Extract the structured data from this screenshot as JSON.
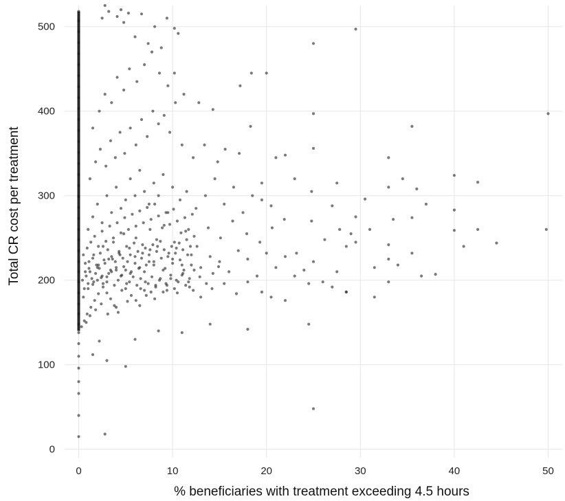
{
  "chart_data": {
    "type": "scatter",
    "title": "",
    "xlabel": "% beneficiaries with treatment exceeding 4.5 hours",
    "ylabel": "Total CR cost per treatment",
    "xlim": [
      -1.5,
      51.5
    ],
    "ylim": [
      -10,
      525
    ],
    "xticks": [
      0,
      10,
      20,
      30,
      40,
      50
    ],
    "yticks": [
      0,
      100,
      200,
      300,
      400,
      500
    ],
    "grid": true,
    "legend": "none",
    "point_color": "#333333",
    "point_opacity": 0.65,
    "points": [
      [
        0,
        15
      ],
      [
        0,
        40
      ],
      [
        0,
        66
      ],
      [
        0,
        80
      ],
      [
        0,
        96
      ],
      [
        0,
        110
      ],
      [
        0,
        125
      ],
      [
        0,
        138
      ],
      [
        0,
        148
      ],
      [
        0,
        160
      ],
      [
        0,
        172
      ],
      [
        0,
        185
      ],
      [
        0,
        198
      ],
      [
        0,
        210
      ],
      [
        0,
        222
      ],
      [
        0,
        235
      ],
      [
        0,
        248
      ],
      [
        0,
        260
      ],
      [
        0,
        273
      ],
      [
        0,
        286
      ],
      [
        0,
        299
      ],
      [
        0,
        312
      ],
      [
        0,
        325
      ],
      [
        0,
        338
      ],
      [
        0,
        351
      ],
      [
        0,
        364
      ],
      [
        0,
        377
      ],
      [
        0,
        390
      ],
      [
        0,
        403
      ],
      [
        0,
        416
      ],
      [
        0,
        429
      ],
      [
        0,
        442
      ],
      [
        0,
        455
      ],
      [
        0,
        468
      ],
      [
        0,
        481
      ],
      [
        0,
        494
      ],
      [
        0,
        507
      ],
      [
        0,
        518
      ],
      [
        2.8,
        18
      ],
      [
        5,
        98
      ],
      [
        25,
        48
      ],
      [
        24.5,
        148
      ],
      [
        3,
        105
      ],
      [
        1.5,
        112
      ],
      [
        2.2,
        128
      ],
      [
        6,
        130
      ],
      [
        8.5,
        140
      ],
      [
        11,
        138
      ],
      [
        14,
        148
      ],
      [
        18,
        142
      ],
      [
        0.8,
        150
      ],
      [
        1.2,
        158
      ],
      [
        1.8,
        165
      ],
      [
        2.4,
        172
      ],
      [
        3.1,
        160
      ],
      [
        4.0,
        168
      ],
      [
        5.2,
        175
      ],
      [
        6.5,
        170
      ],
      [
        7.2,
        182
      ],
      [
        8.1,
        178
      ],
      [
        9.4,
        188
      ],
      [
        10.5,
        185
      ],
      [
        11.8,
        192
      ],
      [
        13.0,
        180
      ],
      [
        14.2,
        190
      ],
      [
        15.5,
        196
      ],
      [
        16.8,
        184
      ],
      [
        18.0,
        198
      ],
      [
        19.5,
        186
      ],
      [
        20.5,
        180
      ],
      [
        22.0,
        176
      ],
      [
        24.5,
        196
      ],
      [
        27.0,
        192
      ],
      [
        28.5,
        186
      ],
      [
        0.5,
        180
      ],
      [
        1.0,
        190
      ],
      [
        1.5,
        195
      ],
      [
        2.0,
        200
      ],
      [
        2.5,
        205
      ],
      [
        3.0,
        198
      ],
      [
        3.5,
        210
      ],
      [
        4.0,
        215
      ],
      [
        4.5,
        205
      ],
      [
        5.0,
        212
      ],
      [
        5.5,
        208
      ],
      [
        6.0,
        220
      ],
      [
        6.5,
        215
      ],
      [
        7.0,
        210
      ],
      [
        7.5,
        222
      ],
      [
        8.0,
        218
      ],
      [
        9.0,
        212
      ],
      [
        10.0,
        225
      ],
      [
        11.0,
        218
      ],
      [
        12.0,
        230
      ],
      [
        13.0,
        215
      ],
      [
        14.0,
        228
      ],
      [
        15.0,
        222
      ],
      [
        16.0,
        210
      ],
      [
        17.0,
        235
      ],
      [
        18.0,
        225
      ],
      [
        19.0,
        205
      ],
      [
        20.0,
        232
      ],
      [
        21.0,
        215
      ],
      [
        22.0,
        228
      ],
      [
        23.0,
        205
      ],
      [
        24.0,
        212
      ],
      [
        25.0,
        222
      ],
      [
        26.0,
        198
      ],
      [
        27.5,
        210
      ],
      [
        28.5,
        240
      ],
      [
        0.7,
        210
      ],
      [
        1.1,
        222
      ],
      [
        1.6,
        230
      ],
      [
        2.1,
        218
      ],
      [
        2.6,
        240
      ],
      [
        3.2,
        225
      ],
      [
        3.7,
        245
      ],
      [
        4.3,
        232
      ],
      [
        4.8,
        255
      ],
      [
        5.4,
        238
      ],
      [
        6.1,
        250
      ],
      [
        6.8,
        242
      ],
      [
        7.6,
        260
      ],
      [
        8.3,
        248
      ],
      [
        9.1,
        265
      ],
      [
        10.2,
        245
      ],
      [
        11.4,
        258
      ],
      [
        12.6,
        240
      ],
      [
        13.8,
        262
      ],
      [
        15.1,
        250
      ],
      [
        16.4,
        270
      ],
      [
        17.9,
        255
      ],
      [
        19.3,
        245
      ],
      [
        20.6,
        262
      ],
      [
        21.9,
        272
      ],
      [
        23.2,
        232
      ],
      [
        24.8,
        270
      ],
      [
        26.2,
        248
      ],
      [
        27.8,
        260
      ],
      [
        29.0,
        255
      ],
      [
        1.0,
        260
      ],
      [
        1.5,
        275
      ],
      [
        2.0,
        290
      ],
      [
        2.5,
        268
      ],
      [
        3.0,
        300
      ],
      [
        3.5,
        280
      ],
      [
        4.0,
        310
      ],
      [
        4.5,
        285
      ],
      [
        5.0,
        295
      ],
      [
        5.5,
        320
      ],
      [
        6.0,
        300
      ],
      [
        6.5,
        330
      ],
      [
        7.0,
        305
      ],
      [
        7.5,
        290
      ],
      [
        8.0,
        315
      ],
      [
        8.5,
        300
      ],
      [
        9.0,
        325
      ],
      [
        9.5,
        280
      ],
      [
        10.0,
        310
      ],
      [
        10.8,
        295
      ],
      [
        11.5,
        305
      ],
      [
        12.5,
        285
      ],
      [
        13.5,
        300
      ],
      [
        14.5,
        320
      ],
      [
        15.5,
        290
      ],
      [
        16.5,
        310
      ],
      [
        17.5,
        280
      ],
      [
        18.5,
        300
      ],
      [
        19.5,
        295
      ],
      [
        20.5,
        288
      ],
      [
        1.2,
        320
      ],
      [
        1.8,
        340
      ],
      [
        2.3,
        355
      ],
      [
        2.9,
        335
      ],
      [
        3.4,
        365
      ],
      [
        3.9,
        345
      ],
      [
        4.4,
        375
      ],
      [
        4.9,
        350
      ],
      [
        5.5,
        380
      ],
      [
        6.1,
        360
      ],
      [
        6.7,
        390
      ],
      [
        7.3,
        370
      ],
      [
        7.9,
        400
      ],
      [
        8.5,
        385
      ],
      [
        9.1,
        395
      ],
      [
        9.7,
        375
      ],
      [
        10.3,
        410
      ],
      [
        11.0,
        360
      ],
      [
        12.2,
        345
      ],
      [
        13.4,
        360
      ],
      [
        14.8,
        340
      ],
      [
        15.6,
        355
      ],
      [
        17.1,
        350
      ],
      [
        18.3,
        382
      ],
      [
        19.5,
        315
      ],
      [
        1.5,
        380
      ],
      [
        2.2,
        400
      ],
      [
        2.8,
        420
      ],
      [
        3.5,
        410
      ],
      [
        4.1,
        440
      ],
      [
        4.8,
        425
      ],
      [
        5.4,
        450
      ],
      [
        6.2,
        435
      ],
      [
        7.0,
        455
      ],
      [
        7.8,
        470
      ],
      [
        8.6,
        445
      ],
      [
        9.5,
        430
      ],
      [
        10.2,
        445
      ],
      [
        11.2,
        420
      ],
      [
        12.8,
        410
      ],
      [
        14.3,
        402
      ],
      [
        17.2,
        430
      ],
      [
        18.4,
        445
      ],
      [
        20.0,
        445
      ],
      [
        2.5,
        510
      ],
      [
        3.2,
        518
      ],
      [
        4.1,
        512
      ],
      [
        4.8,
        505
      ],
      [
        5.3,
        516
      ],
      [
        6.0,
        488
      ],
      [
        6.7,
        515
      ],
      [
        7.4,
        480
      ],
      [
        8.1,
        500
      ],
      [
        8.8,
        475
      ],
      [
        9.4,
        510
      ],
      [
        10.2,
        498
      ],
      [
        10.6,
        492
      ],
      [
        2.8,
        525
      ],
      [
        4.5,
        520
      ],
      [
        29.5,
        497
      ],
      [
        25.0,
        480
      ],
      [
        25.0,
        397
      ],
      [
        50.0,
        397
      ],
      [
        35.5,
        382
      ],
      [
        40.0,
        324
      ],
      [
        42.5,
        316
      ],
      [
        33.0,
        345
      ],
      [
        34.5,
        320
      ],
      [
        33.0,
        310
      ],
      [
        36.0,
        308
      ],
      [
        37.0,
        290
      ],
      [
        40.0,
        283
      ],
      [
        29.5,
        275
      ],
      [
        31.0,
        260
      ],
      [
        40.0,
        259
      ],
      [
        42.5,
        260
      ],
      [
        49.8,
        260
      ],
      [
        41.0,
        240
      ],
      [
        44.5,
        244
      ],
      [
        33.0,
        242
      ],
      [
        35.5,
        232
      ],
      [
        29.5,
        245
      ],
      [
        33.0,
        225
      ],
      [
        34.0,
        218
      ],
      [
        31.5,
        215
      ],
      [
        36.5,
        205
      ],
      [
        38.0,
        207
      ],
      [
        33.0,
        198
      ],
      [
        31.5,
        180
      ],
      [
        28.5,
        186
      ],
      [
        27.0,
        288
      ],
      [
        25.0,
        356
      ],
      [
        21.0,
        345
      ],
      [
        22.0,
        348
      ],
      [
        23.0,
        320
      ],
      [
        24.8,
        305
      ],
      [
        27.5,
        315
      ],
      [
        30.5,
        296
      ],
      [
        33.5,
        272
      ],
      [
        35.5,
        274
      ],
      [
        0.3,
        145
      ],
      [
        0.6,
        152
      ],
      [
        0.9,
        160
      ],
      [
        1.3,
        168
      ],
      [
        1.7,
        176
      ],
      [
        2.1,
        184
      ],
      [
        2.6,
        192
      ],
      [
        3.0,
        185
      ],
      [
        3.4,
        178
      ],
      [
        3.8,
        170
      ],
      [
        4.2,
        162
      ],
      [
        4.6,
        188
      ],
      [
        5.1,
        196
      ],
      [
        5.6,
        182
      ],
      [
        6.1,
        176
      ],
      [
        6.6,
        190
      ],
      [
        7.1,
        198
      ],
      [
        7.7,
        186
      ],
      [
        8.2,
        194
      ],
      [
        8.7,
        202
      ],
      [
        9.3,
        196
      ],
      [
        9.8,
        206
      ],
      [
        10.4,
        200
      ],
      [
        11.1,
        208
      ],
      [
        11.7,
        198
      ],
      [
        12.3,
        212
      ],
      [
        12.9,
        204
      ],
      [
        13.6,
        196
      ],
      [
        14.3,
        208
      ],
      [
        14.9,
        216
      ],
      [
        0.4,
        200
      ],
      [
        0.8,
        205
      ],
      [
        1.2,
        210
      ],
      [
        1.6,
        198
      ],
      [
        2.0,
        215
      ],
      [
        2.4,
        203
      ],
      [
        2.8,
        220
      ],
      [
        3.2,
        208
      ],
      [
        3.6,
        225
      ],
      [
        4.0,
        212
      ],
      [
        4.4,
        230
      ],
      [
        4.8,
        216
      ],
      [
        5.2,
        222
      ],
      [
        5.6,
        210
      ],
      [
        6.0,
        228
      ],
      [
        6.4,
        214
      ],
      [
        6.8,
        232
      ],
      [
        7.2,
        218
      ],
      [
        7.6,
        236
      ],
      [
        8.0,
        222
      ],
      [
        8.4,
        240
      ],
      [
        8.8,
        226
      ],
      [
        9.2,
        214
      ],
      [
        9.6,
        232
      ],
      [
        10.0,
        220
      ],
      [
        10.4,
        238
      ],
      [
        10.8,
        224
      ],
      [
        11.2,
        212
      ],
      [
        11.6,
        230
      ],
      [
        12.0,
        218
      ],
      [
        0.5,
        230
      ],
      [
        0.9,
        238
      ],
      [
        1.3,
        245
      ],
      [
        1.7,
        252
      ],
      [
        2.1,
        240
      ],
      [
        2.5,
        258
      ],
      [
        2.9,
        246
      ],
      [
        3.3,
        264
      ],
      [
        3.7,
        250
      ],
      [
        4.1,
        268
      ],
      [
        4.5,
        256
      ],
      [
        4.9,
        274
      ],
      [
        5.3,
        260
      ],
      [
        5.7,
        278
      ],
      [
        6.1,
        264
      ],
      [
        6.5,
        282
      ],
      [
        6.9,
        268
      ],
      [
        7.3,
        286
      ],
      [
        7.7,
        272
      ],
      [
        8.1,
        290
      ],
      [
        8.5,
        276
      ],
      [
        8.9,
        262
      ],
      [
        9.3,
        280
      ],
      [
        9.7,
        266
      ],
      [
        10.1,
        284
      ],
      [
        10.5,
        270
      ],
      [
        10.9,
        256
      ],
      [
        11.3,
        274
      ],
      [
        11.7,
        260
      ],
      [
        12.1,
        278
      ],
      [
        0.6,
        190
      ],
      [
        1.0,
        196
      ],
      [
        1.4,
        202
      ],
      [
        1.8,
        208
      ],
      [
        2.2,
        214
      ],
      [
        2.6,
        196
      ],
      [
        3.0,
        204
      ],
      [
        3.4,
        212
      ],
      [
        3.8,
        194
      ],
      [
        4.2,
        200
      ],
      [
        4.6,
        206
      ],
      [
        5.0,
        190
      ],
      [
        5.4,
        198
      ],
      [
        5.8,
        204
      ],
      [
        6.2,
        194
      ],
      [
        6.6,
        202
      ],
      [
        7.0,
        188
      ],
      [
        7.4,
        196
      ],
      [
        7.8,
        204
      ],
      [
        8.2,
        192
      ],
      [
        8.6,
        200
      ],
      [
        9.0,
        186
      ],
      [
        9.4,
        194
      ],
      [
        9.8,
        202
      ],
      [
        10.2,
        190
      ],
      [
        10.6,
        198
      ],
      [
        11.0,
        206
      ],
      [
        11.4,
        194
      ],
      [
        11.8,
        202
      ],
      [
        12.2,
        188
      ],
      [
        0.7,
        220
      ],
      [
        1.1,
        214
      ],
      [
        1.5,
        226
      ],
      [
        1.9,
        218
      ],
      [
        2.3,
        232
      ],
      [
        2.7,
        224
      ],
      [
        3.1,
        236
      ],
      [
        3.5,
        228
      ],
      [
        3.9,
        222
      ],
      [
        4.3,
        234
      ],
      [
        4.7,
        226
      ],
      [
        5.1,
        240
      ],
      [
        5.5,
        230
      ],
      [
        5.9,
        244
      ],
      [
        6.3,
        234
      ],
      [
        6.7,
        226
      ],
      [
        7.1,
        238
      ],
      [
        7.5,
        230
      ],
      [
        7.9,
        242
      ],
      [
        8.3,
        234
      ],
      [
        8.7,
        246
      ],
      [
        9.1,
        236
      ],
      [
        9.5,
        228
      ],
      [
        9.9,
        240
      ],
      [
        10.3,
        232
      ],
      [
        10.7,
        244
      ],
      [
        11.1,
        236
      ],
      [
        11.5,
        248
      ],
      [
        11.9,
        240
      ],
      [
        12.3,
        252
      ]
    ]
  }
}
